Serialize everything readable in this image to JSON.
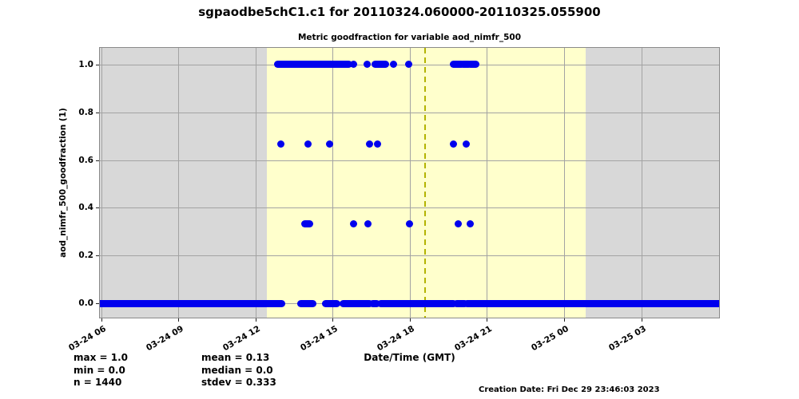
{
  "title": "sgpaodbe5chC1.c1 for 20110324.060000-20110325.055900",
  "subtitle": "Metric goodfraction for variable aod_nimfr_500",
  "stats": {
    "max": "max = 1.0",
    "min": "min = 0.0",
    "n": "n = 1440",
    "mean": "mean = 0.13",
    "median": "median = 0.0",
    "stdev": "stdev = 0.333"
  },
  "footer": {
    "creation_date": "Creation Date: Fri Dec 29 23:46:03 2023"
  },
  "chart_data": {
    "type": "scatter",
    "title": "Metric goodfraction for variable aod_nimfr_500",
    "suptitle": "sgpaodbe5chC1.c1 for 20110324.060000-20110325.055900",
    "xlabel": "Date/Time (GMT)",
    "ylabel": "aod_nimfr_500_goodfraction (1)",
    "grid": true,
    "xlim_hours_gmt_from_0324_0000": [
      5.94,
      30.03
    ],
    "ylim": [
      -0.06,
      1.07
    ],
    "x_ticks": [
      {
        "t": 6,
        "label": "03-24 06"
      },
      {
        "t": 9,
        "label": "03-24 09"
      },
      {
        "t": 12,
        "label": "03-24 12"
      },
      {
        "t": 15,
        "label": "03-24 15"
      },
      {
        "t": 18,
        "label": "03-24 18"
      },
      {
        "t": 21,
        "label": "03-24 21"
      },
      {
        "t": 24,
        "label": "03-25 00"
      },
      {
        "t": 27,
        "label": "03-25 03"
      }
    ],
    "y_ticks": [
      {
        "v": 0.0,
        "label": "0.0"
      },
      {
        "v": 0.2,
        "label": "0.2"
      },
      {
        "v": 0.4,
        "label": "0.4"
      },
      {
        "v": 0.6,
        "label": "0.6"
      },
      {
        "v": 0.8,
        "label": "0.8"
      },
      {
        "v": 1.0,
        "label": "1.0"
      }
    ],
    "daylight_band_hours": [
      12.44,
      24.83
    ],
    "solar_noon_hour": 18.6,
    "colors": {
      "point": "#0000ee",
      "night_background": "#d8d8d8",
      "daylight_band": "#ffffcc",
      "solar_noon_line": "#b3b300",
      "grid": "#a3a3a3"
    },
    "marker_px": 9,
    "series": [
      {
        "name": "goodfraction 1.0",
        "y": 1.0,
        "segments_hours": [
          [
            12.86,
            15.63
          ],
          [
            16.65,
            17.06
          ],
          [
            19.7,
            20.01
          ],
          [
            20.08,
            20.29
          ],
          [
            20.35,
            20.58
          ]
        ],
        "points_hours": [
          15.81,
          16.34,
          17.37,
          17.96
        ]
      },
      {
        "name": "goodfraction 0.667",
        "y": 0.667,
        "segments_hours": [],
        "points_hours": [
          12.99,
          14.04,
          14.88,
          16.43,
          16.75,
          19.7,
          20.19
        ]
      },
      {
        "name": "goodfraction 0.333",
        "y": 0.333,
        "segments_hours": [
          [
            13.92,
            14.11
          ]
        ],
        "points_hours": [
          15.81,
          16.37,
          17.99,
          19.88,
          20.35
        ]
      },
      {
        "name": "goodfraction 0.0",
        "y": 0.0,
        "segments_hours": [
          [
            5.94,
            13.02
          ],
          [
            13.76,
            14.23
          ],
          [
            14.73,
            15.16
          ],
          [
            15.41,
            16.43
          ],
          [
            16.56,
            16.71
          ],
          [
            16.87,
            19.7
          ],
          [
            19.82,
            20.13
          ],
          [
            20.22,
            30.03
          ]
        ],
        "points_hours": []
      }
    ],
    "stats": {
      "max": 1.0,
      "min": 0.0,
      "n": 1440,
      "mean": 0.13,
      "median": 0.0,
      "stdev": 0.333
    }
  }
}
